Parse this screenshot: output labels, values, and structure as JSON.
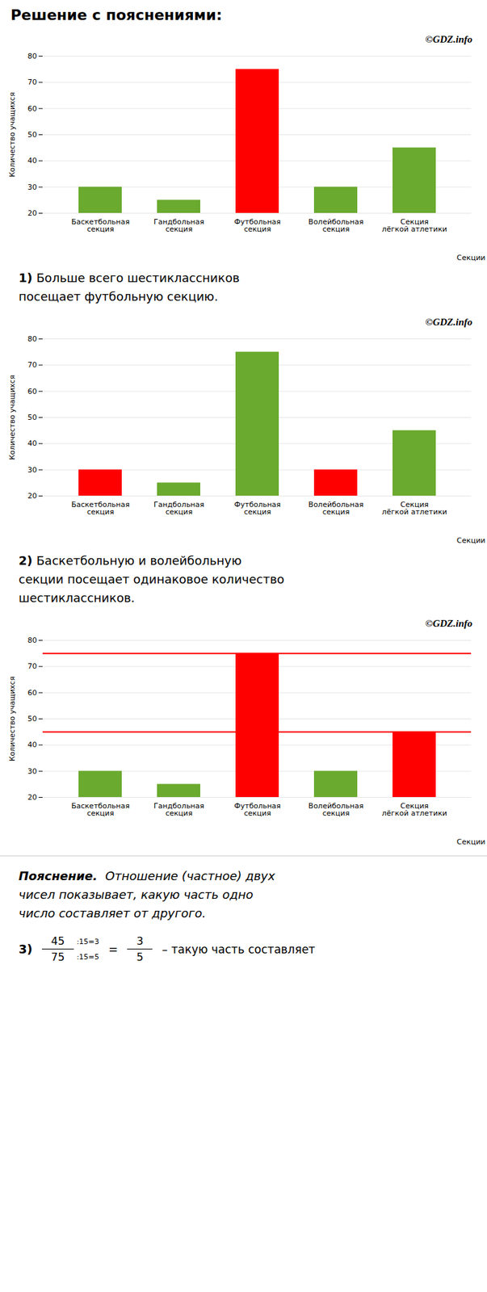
{
  "chart_data": [
    {
      "type": "bar",
      "title": "Решение с пояснениями:",
      "subtitle": "©GDZ.info",
      "categories": [
        "Баскетбольная\nсекция",
        "Гандбольная\nсекция",
        "Футбольная\nсекция",
        "Волейбольная\nсекция",
        "Секция\nлёгкой атлетики"
      ],
      "values": [
        30,
        25,
        75,
        30,
        45
      ],
      "colors": [
        "#6aaa2e",
        "#6aaa2e",
        "#ff0000",
        "#6aaa2e",
        "#6aaa2e"
      ],
      "xlabel": "Секции",
      "ylabel": "Количество учащихся",
      "ylim": [
        20,
        80
      ],
      "yticks": [
        20,
        30,
        40,
        50,
        60,
        70,
        80
      ],
      "grid": true,
      "annotations": [
        [
          "1)",
          "Больше всего шестиклассников"
        ],
        [
          "посещает футбольную секцию."
        ]
      ]
    },
    {
      "type": "bar",
      "subtitle": "©GDZ.info",
      "categories": [
        "Баскетбольная\nсекция",
        "Гандбольная\nсекция",
        "Футбольная\nсекция",
        "Волейбольная\nсекция",
        "Секция\nлёгкой атлетики"
      ],
      "values": [
        30,
        25,
        75,
        30,
        45
      ],
      "colors": [
        "#ff0000",
        "#6aaa2e",
        "#6aaa2e",
        "#ff0000",
        "#6aaa2e"
      ],
      "xlabel": "Секции",
      "ylabel": "Количество учащихся",
      "ylim": [
        20,
        80
      ],
      "yticks": [
        20,
        30,
        40,
        50,
        60,
        70,
        80
      ],
      "grid": true,
      "annotations": [
        [
          "2)",
          "Баскетбольную и волейбольную"
        ],
        [
          "секции посещает одинаковое количество"
        ],
        [
          "шестиклассников."
        ]
      ]
    },
    {
      "type": "bar",
      "subtitle": "©GDZ.info",
      "categories": [
        "Баскетбольная\nсекция",
        "Гандбольная\nсекция",
        "Футбольная\nсекция",
        "Волейбольная\nсекция",
        "Секция\nлёгкой атлетики"
      ],
      "values": [
        30,
        25,
        75,
        30,
        45
      ],
      "colors": [
        "#6aaa2e",
        "#6aaa2e",
        "#ff0000",
        "#6aaa2e",
        "#ff0000"
      ],
      "hlines": {
        "values": [
          75,
          45
        ],
        "color": "red"
      },
      "xlabel": "Секции",
      "ylabel": "Количество учащихся",
      "ylim": [
        20,
        80
      ],
      "yticks": [
        20,
        30,
        40,
        50,
        60,
        70,
        80
      ],
      "grid": true,
      "annotations": [
        [
          "Пояснение.",
          " Отношение (частное) двух"
        ],
        [
          "чисел показывает, какую часть одно"
        ],
        [
          "число составляет от другого."
        ],
        {
          "formula": [
            "3)",
            {
              "num": "45",
              "den": "75",
              "notes": [
                ":15=3",
                ":15=5"
              ]
            },
            "=",
            {
              "num": "3",
              "den": "5"
            },
            "– такую часть составляет"
          ]
        }
      ]
    }
  ]
}
